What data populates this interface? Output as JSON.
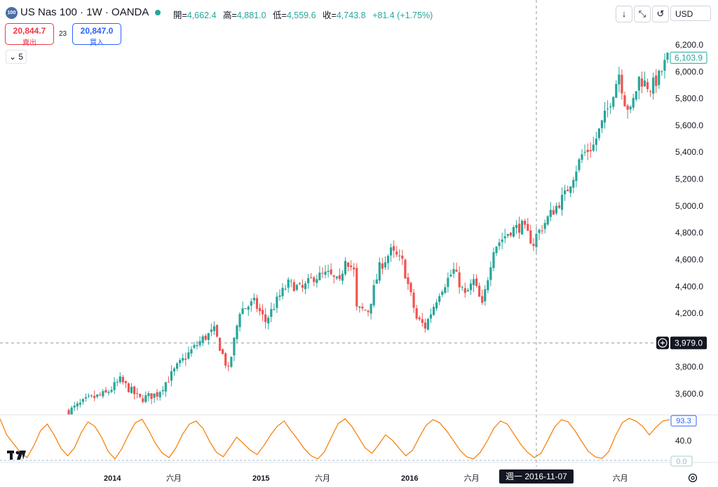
{
  "header": {
    "symbol_badge": "100",
    "title": "US Nas 100 · 1W · OANDA",
    "ohlc": [
      {
        "key": "開=",
        "value": "4,662.4"
      },
      {
        "key": "高=",
        "value": "4,881.0"
      },
      {
        "key": "低=",
        "value": "4,559.6"
      },
      {
        "key": "收=",
        "value": "4,743.8"
      },
      {
        "key": "",
        "value": "+81.4 (+1.75%)"
      }
    ],
    "currency": "USD"
  },
  "toolbar": {
    "down_icon": "arrow-down-icon",
    "collapse_icon": "collapse-icon",
    "restore_icon": "restore-icon"
  },
  "trade": {
    "sell_price": "20,844.7",
    "sell_label": "賣出",
    "spread": "23",
    "buy_price": "20,847.0",
    "buy_label": "買入"
  },
  "indicators_count": "5",
  "crosshair": {
    "price_label": "3,979.0",
    "date_label": "週一  2016-11-07"
  },
  "last_price_label": "6,103.9",
  "oscillator": {
    "value_label": "93.3",
    "level_label": "40.0",
    "zero_label": "0.0"
  },
  "colors": {
    "up": "#26a69a",
    "down": "#ef5350",
    "oscillator": "#f57c00",
    "crosshair": "#9598a1"
  },
  "chart_data": {
    "type": "candlestick",
    "y_ticks": [
      "6,200.0",
      "6,000.0",
      "5,800.0",
      "5,600.0",
      "5,400.0",
      "5,200.0",
      "5,000.0",
      "4,800.0",
      "4,600.0",
      "4,400.0",
      "4,200.0",
      "3,800.0",
      "3,600.0"
    ],
    "x_ticks": [
      {
        "label": "2014",
        "bold": true,
        "date": "2014-01-01"
      },
      {
        "label": "六月",
        "bold": false,
        "date": "2014-06-01"
      },
      {
        "label": "2015",
        "bold": true,
        "date": "2015-01-01"
      },
      {
        "label": "六月",
        "bold": false,
        "date": "2015-06-01"
      },
      {
        "label": "2016",
        "bold": true,
        "date": "2016-01-01"
      },
      {
        "label": "六月",
        "bold": false,
        "date": "2016-06-01"
      },
      {
        "label": "六月",
        "bold": false,
        "date": "2017-06-01"
      }
    ],
    "ylim": [
      3540,
      6330
    ],
    "date_range": [
      "2013-09-09",
      "2017-09-25"
    ],
    "crosshair_date": "2016-11-07",
    "crosshair_price": 3979,
    "last_price": 6103.9,
    "close_anchors": [
      [
        "2013-09-16",
        3470
      ],
      [
        "2013-11-04",
        3560
      ],
      [
        "2013-12-16",
        3600
      ],
      [
        "2014-01-20",
        3700
      ],
      [
        "2014-02-10",
        3640
      ],
      [
        "2014-03-10",
        3560
      ],
      [
        "2014-04-21",
        3600
      ],
      [
        "2014-06-09",
        3800
      ],
      [
        "2014-07-07",
        3900
      ],
      [
        "2014-08-11",
        4010
      ],
      [
        "2014-09-08",
        4070
      ],
      [
        "2014-10-13",
        3770
      ],
      [
        "2014-11-10",
        4220
      ],
      [
        "2014-12-15",
        4280
      ],
      [
        "2015-01-12",
        4140
      ],
      [
        "2015-02-16",
        4330
      ],
      [
        "2015-03-09",
        4420
      ],
      [
        "2015-04-13",
        4380
      ],
      [
        "2015-05-11",
        4470
      ],
      [
        "2015-06-15",
        4490
      ],
      [
        "2015-07-13",
        4420
      ],
      [
        "2015-07-27",
        4620
      ],
      [
        "2015-08-17",
        4510
      ],
      [
        "2015-08-24",
        4230
      ],
      [
        "2015-09-21",
        4220
      ],
      [
        "2015-10-19",
        4540
      ],
      [
        "2015-11-16",
        4660
      ],
      [
        "2015-12-14",
        4580
      ],
      [
        "2016-01-18",
        4160
      ],
      [
        "2016-02-08",
        4100
      ],
      [
        "2016-03-14",
        4360
      ],
      [
        "2016-04-18",
        4520
      ],
      [
        "2016-05-16",
        4330
      ],
      [
        "2016-06-06",
        4440
      ],
      [
        "2016-06-27",
        4250
      ],
      [
        "2016-07-25",
        4690
      ],
      [
        "2016-09-05",
        4820
      ],
      [
        "2016-10-03",
        4850
      ],
      [
        "2016-10-31",
        4720
      ],
      [
        "2016-11-07",
        4780
      ],
      [
        "2016-12-12",
        4940
      ],
      [
        "2017-01-16",
        5080
      ],
      [
        "2017-02-27",
        5380
      ],
      [
        "2017-03-27",
        5450
      ],
      [
        "2017-05-01",
        5720
      ],
      [
        "2017-05-29",
        5990
      ],
      [
        "2017-06-12",
        5780
      ],
      [
        "2017-06-26",
        5700
      ],
      [
        "2017-07-17",
        5950
      ],
      [
        "2017-08-14",
        5880
      ],
      [
        "2017-09-04",
        5960
      ],
      [
        "2017-09-25",
        6104
      ]
    ],
    "oscillator_values": [
      97,
      60,
      40,
      20,
      8,
      35,
      70,
      85,
      60,
      30,
      12,
      30,
      65,
      90,
      80,
      55,
      22,
      5,
      28,
      60,
      88,
      96,
      70,
      40,
      18,
      8,
      30,
      62,
      85,
      92,
      75,
      45,
      20,
      10,
      32,
      55,
      40,
      25,
      15,
      35,
      60,
      80,
      92,
      70,
      50,
      28,
      12,
      5,
      22,
      55,
      86,
      97,
      80,
      55,
      30,
      18,
      38,
      60,
      48,
      30,
      12,
      25,
      55,
      82,
      95,
      88,
      70,
      48,
      25,
      10,
      5,
      20,
      45,
      75,
      92,
      85,
      62,
      38,
      20,
      8,
      18,
      48,
      78,
      95,
      90,
      70,
      45,
      22,
      10,
      6,
      22,
      58,
      88,
      98,
      92,
      80,
      60,
      78,
      92,
      95
    ]
  }
}
